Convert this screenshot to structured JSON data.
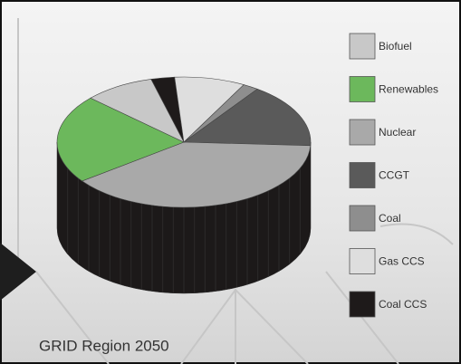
{
  "chart_data": {
    "type": "pie",
    "title": "GRID Region 2050",
    "categories": [
      "Biofuel",
      "Renewables",
      "Nuclear",
      "CCGT",
      "Coal",
      "Gas CCS",
      "Coal CCS"
    ],
    "values": [
      9,
      22,
      39,
      16,
      2,
      9,
      3
    ],
    "colors": [
      "#c8c8c8",
      "#6cb85c",
      "#a9a9a9",
      "#5a5a5a",
      "#8e8e8e",
      "#dedede",
      "#1e1a1a"
    ]
  }
}
